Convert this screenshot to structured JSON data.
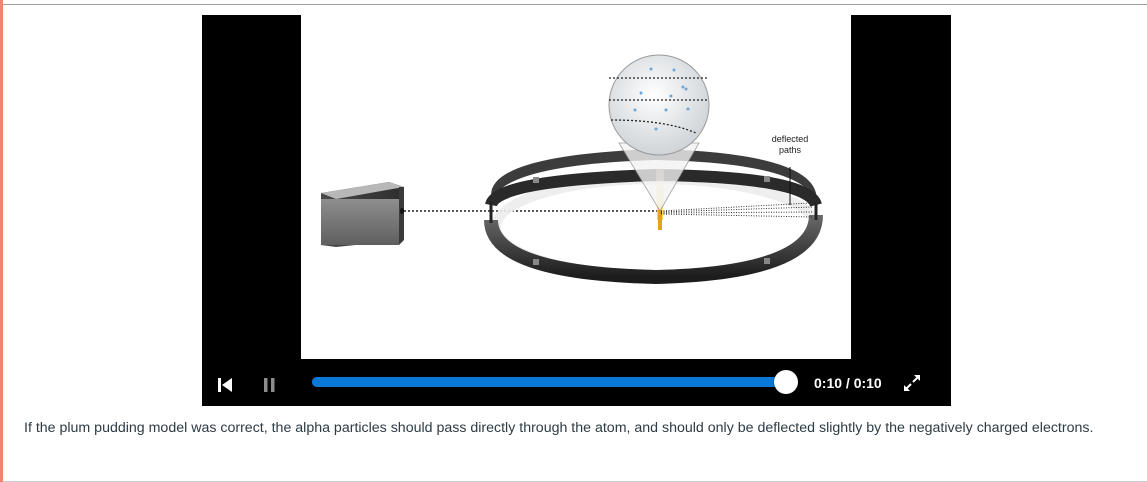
{
  "video": {
    "diagram_label": "deflected\npaths",
    "diagram_label_line1": "deflected",
    "diagram_label_line2": "paths"
  },
  "controls": {
    "skip_back_icon": "skip-back-icon",
    "pause_icon": "pause-icon",
    "progress_fraction": 1.0,
    "time_current": "0:10",
    "time_total": "0:10",
    "time_text": "0:10 / 0:10",
    "fullscreen_icon": "fullscreen-icon"
  },
  "caption": {
    "text": "If the plum pudding model was correct, the alpha particles should pass directly through the atom, and should only be deflected slightly by the negatively charged electrons."
  },
  "colors": {
    "accent_left": "#e8896a",
    "progress": "#0a78d7",
    "player_bg": "#000000",
    "caption_text": "#2d3b45"
  }
}
